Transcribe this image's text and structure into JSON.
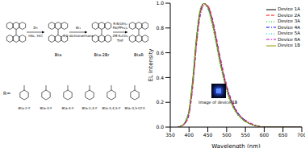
{
  "scheme": {
    "reagents": [
      [
        "Zn",
        "HAc, HCl"
      ],
      [
        "Br₂",
        "1,2-dichloroethane"
      ],
      [
        "R-B(OH)₂",
        "Pd(PPh₃)₄",
        "2M K₂CO₃",
        "THF"
      ]
    ],
    "compounds": [
      "Bta",
      "Bta-2Br",
      "BtaR"
    ],
    "substituent_label": "R=",
    "substituents": [
      "Bta-2-F",
      "Bta-3-F",
      "Bta-4-F",
      "Bta-2,4-F",
      "Bta-3,4,5-F",
      "Bta-3,5-CF3"
    ]
  },
  "chart_data": {
    "type": "line",
    "x_label": "Wavelength (nm)",
    "y_label": "EL Intensity",
    "annotations": [
      "Image of device 1B"
    ],
    "legend": "upper right",
    "grid": false,
    "xlim": [
      350,
      700
    ],
    "xticks": [
      350,
      400,
      450,
      500,
      550,
      600,
      650,
      700
    ],
    "ylim": [
      0,
      1
    ],
    "yticks": [
      {
        "value": 0,
        "label": "0.0"
      },
      0.2,
      0.4,
      0.6,
      0.8,
      {
        "value": 1,
        "label": "1.0"
      }
    ],
    "x": [
      370,
      380,
      390,
      400,
      410,
      420,
      430,
      440,
      450,
      460,
      470,
      480,
      490,
      500,
      520,
      540,
      560,
      580,
      600,
      650,
      700
    ],
    "series": [
      {
        "name": "Device 1A",
        "color": "#000000",
        "line_style": "solid",
        "values": [
          0,
          0.01,
          0.04,
          0.13,
          0.38,
          0.72,
          0.94,
          1.0,
          0.97,
          0.87,
          0.73,
          0.57,
          0.43,
          0.31,
          0.15,
          0.07,
          0.03,
          0.01,
          0,
          0,
          0
        ]
      },
      {
        "name": "Device 2A",
        "color": "#ff0000",
        "line_style": "dashed",
        "values": [
          0,
          0.01,
          0.03,
          0.11,
          0.34,
          0.68,
          0.92,
          0.99,
          0.98,
          0.89,
          0.75,
          0.59,
          0.45,
          0.33,
          0.16,
          0.08,
          0.03,
          0.01,
          0,
          0,
          0
        ]
      },
      {
        "name": "Device 3A",
        "color": "#00cc00",
        "line_style": "dotted",
        "values": [
          0,
          0.01,
          0.05,
          0.15,
          0.41,
          0.75,
          0.96,
          1.0,
          0.95,
          0.84,
          0.7,
          0.54,
          0.41,
          0.29,
          0.14,
          0.06,
          0.03,
          0.01,
          0,
          0,
          0
        ]
      },
      {
        "name": "Device 4A",
        "color": "#0000ff",
        "line_style": "dashdot",
        "values": [
          0,
          0.01,
          0.04,
          0.12,
          0.36,
          0.7,
          0.93,
          1.0,
          0.97,
          0.88,
          0.74,
          0.58,
          0.44,
          0.32,
          0.16,
          0.08,
          0.03,
          0.01,
          0,
          0,
          0
        ]
      },
      {
        "name": "Device 5A",
        "color": "#00cccc",
        "line_style": "dotted",
        "values": [
          0,
          0.01,
          0.04,
          0.14,
          0.39,
          0.73,
          0.95,
          1.0,
          0.96,
          0.86,
          0.72,
          0.56,
          0.42,
          0.3,
          0.15,
          0.07,
          0.03,
          0.01,
          0,
          0,
          0
        ]
      },
      {
        "name": "Device 6A",
        "color": "#cc00cc",
        "line_style": "dashdot",
        "values": [
          0,
          0.01,
          0.03,
          0.1,
          0.32,
          0.66,
          0.9,
          0.98,
          0.98,
          0.9,
          0.77,
          0.61,
          0.47,
          0.34,
          0.17,
          0.08,
          0.04,
          0.01,
          0,
          0,
          0
        ]
      },
      {
        "name": "Device 1B",
        "color": "#999900",
        "line_style": "solid",
        "values": [
          0,
          0.01,
          0.04,
          0.13,
          0.37,
          0.71,
          0.94,
          1.0,
          0.97,
          0.87,
          0.73,
          0.57,
          0.43,
          0.31,
          0.15,
          0.07,
          0.03,
          0.01,
          0,
          0,
          0
        ]
      }
    ]
  }
}
